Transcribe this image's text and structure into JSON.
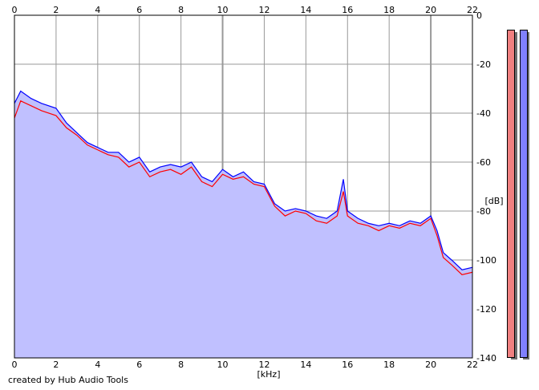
{
  "chart_data": {
    "type": "area",
    "xlabel": "[kHz]",
    "ylabel": "[dB]",
    "xlim": [
      0,
      22
    ],
    "ylim": [
      -140,
      0
    ],
    "x_ticks": [
      "0",
      "2",
      "4",
      "6",
      "8",
      "10",
      "12",
      "14",
      "16",
      "18",
      "20",
      "22"
    ],
    "y_ticks": [
      "0",
      "-20",
      "-40",
      "-60",
      "-80",
      "-100",
      "-120",
      "-140"
    ],
    "grid": true,
    "fill_color": "#c0c0ff",
    "series": [
      {
        "color": "#ff0000",
        "x": [
          0,
          0.3,
          0.8,
          1.3,
          2.0,
          2.5,
          3.0,
          3.5,
          4.0,
          4.5,
          5.0,
          5.5,
          6.0,
          6.5,
          7.0,
          7.5,
          8.0,
          8.5,
          9.0,
          9.5,
          10.0,
          10.5,
          11.0,
          11.5,
          12.0,
          12.5,
          13.0,
          13.5,
          14.0,
          14.5,
          15.0,
          15.5,
          15.8,
          16.0,
          16.5,
          17.0,
          17.5,
          18.0,
          18.5,
          19.0,
          19.5,
          20.0,
          20.3,
          20.6,
          21.0,
          21.5,
          22.0
        ],
        "y": [
          -42,
          -35,
          -37,
          -39,
          -41,
          -46,
          -49,
          -53,
          -55,
          -57,
          -58,
          -62,
          -60,
          -66,
          -64,
          -63,
          -65,
          -62,
          -68,
          -70,
          -65,
          -67,
          -66,
          -69,
          -70,
          -78,
          -82,
          -80,
          -81,
          -84,
          -85,
          -82,
          -72,
          -82,
          -85,
          -86,
          -88,
          -86,
          -87,
          -85,
          -86,
          -83,
          -90,
          -99,
          -102,
          -106,
          -105
        ]
      },
      {
        "color": "#0000ff",
        "x": [
          0,
          0.3,
          0.8,
          1.3,
          2.0,
          2.5,
          3.0,
          3.5,
          4.0,
          4.5,
          5.0,
          5.5,
          6.0,
          6.5,
          7.0,
          7.5,
          8.0,
          8.5,
          9.0,
          9.5,
          10.0,
          10.5,
          11.0,
          11.5,
          12.0,
          12.5,
          13.0,
          13.5,
          14.0,
          14.5,
          15.0,
          15.5,
          15.8,
          16.0,
          16.5,
          17.0,
          17.5,
          18.0,
          18.5,
          19.0,
          19.5,
          20.0,
          20.3,
          20.6,
          21.0,
          21.5,
          22.0
        ],
        "y": [
          -36,
          -31,
          -34,
          -36,
          -38,
          -44,
          -48,
          -52,
          -54,
          -56,
          -56,
          -60,
          -58,
          -64,
          -62,
          -61,
          -62,
          -60,
          -66,
          -68,
          -63,
          -66,
          -64,
          -68,
          -69,
          -77,
          -80,
          -79,
          -80,
          -82,
          -83,
          -80,
          -67,
          -80,
          -83,
          -85,
          -86,
          -85,
          -86,
          -84,
          -85,
          -82,
          -88,
          -97,
          -100,
          -104,
          -103
        ]
      }
    ]
  },
  "meters": [
    {
      "color": "#f08080"
    },
    {
      "color": "#8080ff"
    }
  ],
  "footer": {
    "credit": "created by Hub Audio Tools"
  }
}
